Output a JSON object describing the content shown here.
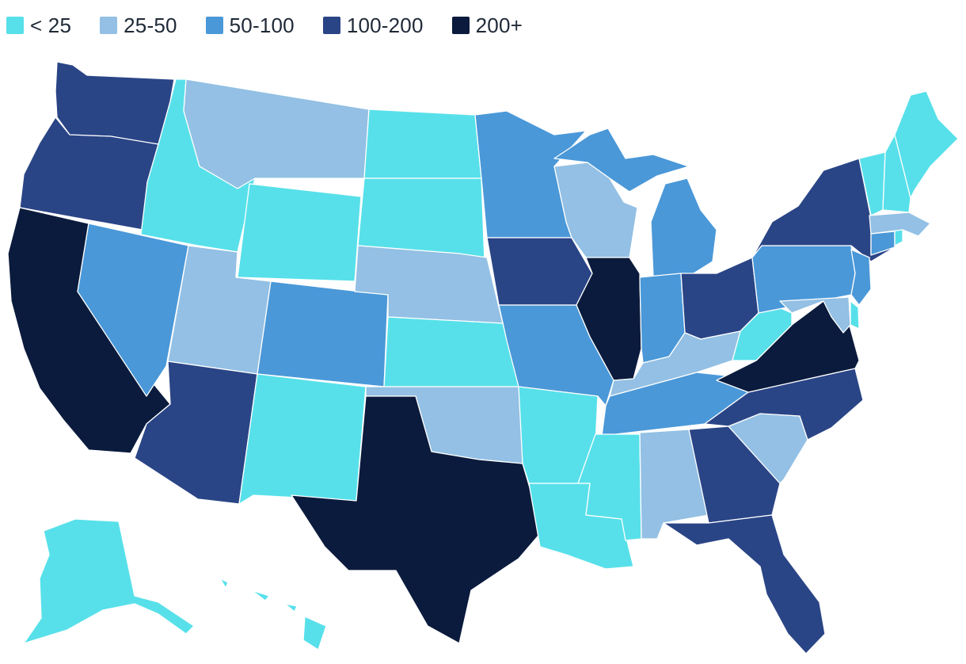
{
  "legend": [
    {
      "label": "< 25",
      "color": "#57e0ea"
    },
    {
      "label": "25-50",
      "color": "#93c0e4"
    },
    {
      "label": "50-100",
      "color": "#4a98d8"
    },
    {
      "label": "100-200",
      "color": "#2a4586"
    },
    {
      "label": "200+",
      "color": "#0b1b3d"
    }
  ],
  "states": [
    {
      "id": "WA",
      "bin": 3
    },
    {
      "id": "OR",
      "bin": 3
    },
    {
      "id": "CA",
      "bin": 4
    },
    {
      "id": "ID",
      "bin": 0
    },
    {
      "id": "NV",
      "bin": 2
    },
    {
      "id": "MT",
      "bin": 1
    },
    {
      "id": "WY",
      "bin": 0
    },
    {
      "id": "UT",
      "bin": 1
    },
    {
      "id": "AZ",
      "bin": 3
    },
    {
      "id": "CO",
      "bin": 2
    },
    {
      "id": "NM",
      "bin": 0
    },
    {
      "id": "ND",
      "bin": 0
    },
    {
      "id": "SD",
      "bin": 0
    },
    {
      "id": "NE",
      "bin": 1
    },
    {
      "id": "KS",
      "bin": 0
    },
    {
      "id": "OK",
      "bin": 1
    },
    {
      "id": "TX",
      "bin": 4
    },
    {
      "id": "MN",
      "bin": 2
    },
    {
      "id": "IA",
      "bin": 3
    },
    {
      "id": "MO",
      "bin": 2
    },
    {
      "id": "AR",
      "bin": 0
    },
    {
      "id": "LA",
      "bin": 0
    },
    {
      "id": "WI",
      "bin": 1
    },
    {
      "id": "IL",
      "bin": 4
    },
    {
      "id": "MI",
      "bin": 2
    },
    {
      "id": "IN",
      "bin": 2
    },
    {
      "id": "OH",
      "bin": 3
    },
    {
      "id": "KY",
      "bin": 1
    },
    {
      "id": "TN",
      "bin": 2
    },
    {
      "id": "MS",
      "bin": 0
    },
    {
      "id": "AL",
      "bin": 1
    },
    {
      "id": "GA",
      "bin": 3
    },
    {
      "id": "FL",
      "bin": 3
    },
    {
      "id": "SC",
      "bin": 1
    },
    {
      "id": "NC",
      "bin": 3
    },
    {
      "id": "VA",
      "bin": 4
    },
    {
      "id": "WV",
      "bin": 0
    },
    {
      "id": "PA",
      "bin": 2
    },
    {
      "id": "NY",
      "bin": 3
    },
    {
      "id": "NJ",
      "bin": 2
    },
    {
      "id": "DE",
      "bin": 0
    },
    {
      "id": "MD",
      "bin": 1
    },
    {
      "id": "CT",
      "bin": 2
    },
    {
      "id": "RI",
      "bin": 0
    },
    {
      "id": "MA",
      "bin": 1
    },
    {
      "id": "VT",
      "bin": 0
    },
    {
      "id": "NH",
      "bin": 0
    },
    {
      "id": "ME",
      "bin": 0
    },
    {
      "id": "AK",
      "bin": 0
    },
    {
      "id": "HI",
      "bin": 0
    }
  ]
}
